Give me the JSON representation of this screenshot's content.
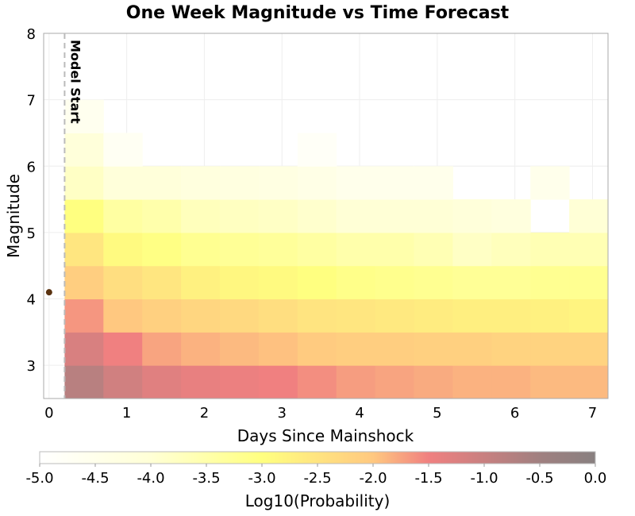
{
  "chart_data": {
    "type": "heatmap",
    "title": "One Week Magnitude vs Time Forecast",
    "xlabel": "Days Since Mainshock",
    "ylabel": "Magnitude",
    "xlim": [
      -0.07,
      7.2
    ],
    "ylim": [
      2.5,
      8
    ],
    "xticks": [
      "0",
      "1",
      "2",
      "3",
      "4",
      "5",
      "6",
      "7"
    ],
    "yticks": [
      "3",
      "4",
      "5",
      "6",
      "7",
      "8"
    ],
    "grid": true,
    "x_bin_edges_start": 0.2,
    "x_bin_width": 0.5,
    "y_bin_edges_start": 2.5,
    "y_bin_width": 0.5,
    "z_rows_bottom_to_top": [
      [
        -0.8,
        -1.1,
        -1.3,
        -1.4,
        -1.45,
        -1.5,
        -1.6,
        -1.7,
        -1.75,
        -1.8,
        -1.85,
        -1.85,
        -1.9,
        -1.9
      ],
      [
        -1.2,
        -1.5,
        -1.75,
        -1.85,
        -1.9,
        -1.95,
        -2.05,
        -2.1,
        -2.1,
        -2.15,
        -2.15,
        -2.2,
        -2.2,
        -2.2
      ],
      [
        -1.65,
        -2.0,
        -2.15,
        -2.25,
        -2.3,
        -2.4,
        -2.5,
        -2.55,
        -2.6,
        -2.65,
        -2.7,
        -2.7,
        -2.75,
        -2.8
      ],
      [
        -2.1,
        -2.4,
        -2.55,
        -2.75,
        -2.85,
        -2.9,
        -3.0,
        -3.1,
        -3.15,
        -3.2,
        -3.25,
        -3.25,
        -3.2,
        -3.2
      ],
      [
        -2.55,
        -2.9,
        -3.05,
        -3.2,
        -3.25,
        -3.3,
        -3.4,
        -3.5,
        -3.5,
        -3.6,
        -3.8,
        -3.7,
        -3.6,
        -3.6
      ],
      [
        -3.0,
        -3.4,
        -3.5,
        -3.7,
        -3.75,
        -3.8,
        -3.9,
        -4.0,
        -4.0,
        -4.0,
        -4.1,
        -4.2,
        null,
        -4.0
      ],
      [
        -3.8,
        -4.1,
        -4.1,
        -4.2,
        -4.25,
        -4.3,
        -4.4,
        -4.5,
        -4.5,
        -4.5,
        null,
        null,
        -4.5,
        null
      ],
      [
        -4.1,
        -4.7,
        null,
        null,
        null,
        null,
        -4.8,
        null,
        null,
        null,
        null,
        null,
        null,
        null
      ],
      [
        -4.6,
        null,
        null,
        null,
        null,
        null,
        null,
        null,
        null,
        null,
        null,
        null,
        null,
        null
      ]
    ],
    "mainshock": {
      "x": 0,
      "y": 4.1,
      "color": "#5a3210"
    },
    "model_start": {
      "x": 0.2,
      "label": "Model Start"
    },
    "colorbar": {
      "label": "Log10(Probability)",
      "range": [
        -5,
        0
      ],
      "ticks": [
        "-5.0",
        "-4.5",
        "-4.0",
        "-3.5",
        "-3.0",
        "-2.5",
        "-2.0",
        "-1.5",
        "-1.0",
        "-0.5",
        "0.0"
      ],
      "stops": [
        [
          -5,
          "#ffffff"
        ],
        [
          -4,
          "#ffffd6"
        ],
        [
          -3,
          "#ffff80"
        ],
        [
          -2,
          "#ffc880"
        ],
        [
          -1.5,
          "#f08080"
        ],
        [
          -0.5,
          "#a08080"
        ],
        [
          0,
          "#888080"
        ]
      ]
    }
  }
}
